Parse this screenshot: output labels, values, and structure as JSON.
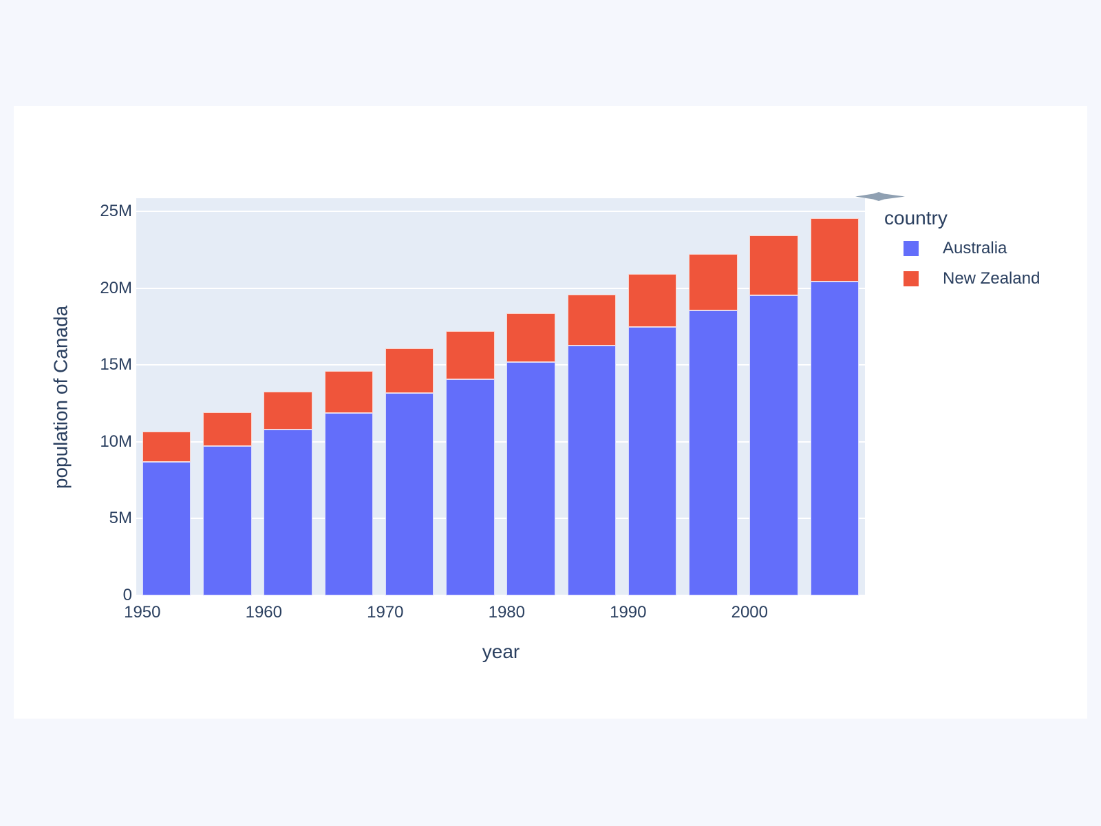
{
  "colors": {
    "page_bg": "#f5f7fd",
    "card_bg": "#ffffff",
    "plot_bg": "#e5ecf6",
    "grid": "#ffffff",
    "text": "#2a3f5f",
    "modebar_icon": "#7b8fa4"
  },
  "chart_data": {
    "type": "bar",
    "barmode": "stack",
    "title": "",
    "xlabel": "year",
    "ylabel": "population of Canada",
    "legend_title": "country",
    "legend_position": "right-top",
    "grid": true,
    "x": [
      1952,
      1957,
      1962,
      1967,
      1972,
      1977,
      1982,
      1987,
      1992,
      1997,
      2002,
      2007
    ],
    "series": [
      {
        "name": "Australia",
        "color": "#636efa",
        "values": [
          8691212,
          9712569,
          10794968,
          11872264,
          13177000,
          14074100,
          15184200,
          16257249,
          17481977,
          18565243,
          19546792,
          20434176
        ]
      },
      {
        "name": "New Zealand",
        "color": "#ef553b",
        "values": [
          1994794,
          2229407,
          2488550,
          2728150,
          2929100,
          3164900,
          3210650,
          3317166,
          3437674,
          3676187,
          3908037,
          4115771
        ]
      }
    ],
    "x_range": [
      1949.5,
      2009.5
    ],
    "y_range": [
      0,
      25870000
    ],
    "bar_width_x_units": 4,
    "x_ticks": {
      "values": [
        1950,
        1960,
        1970,
        1980,
        1990,
        2000
      ],
      "labels": [
        "1950",
        "1960",
        "1970",
        "1980",
        "1990",
        "2000"
      ]
    },
    "y_ticks": {
      "values": [
        0,
        5000000,
        10000000,
        15000000,
        20000000,
        25000000
      ],
      "labels": [
        "0",
        "5M",
        "10M",
        "15M",
        "20M",
        "25M"
      ]
    }
  }
}
